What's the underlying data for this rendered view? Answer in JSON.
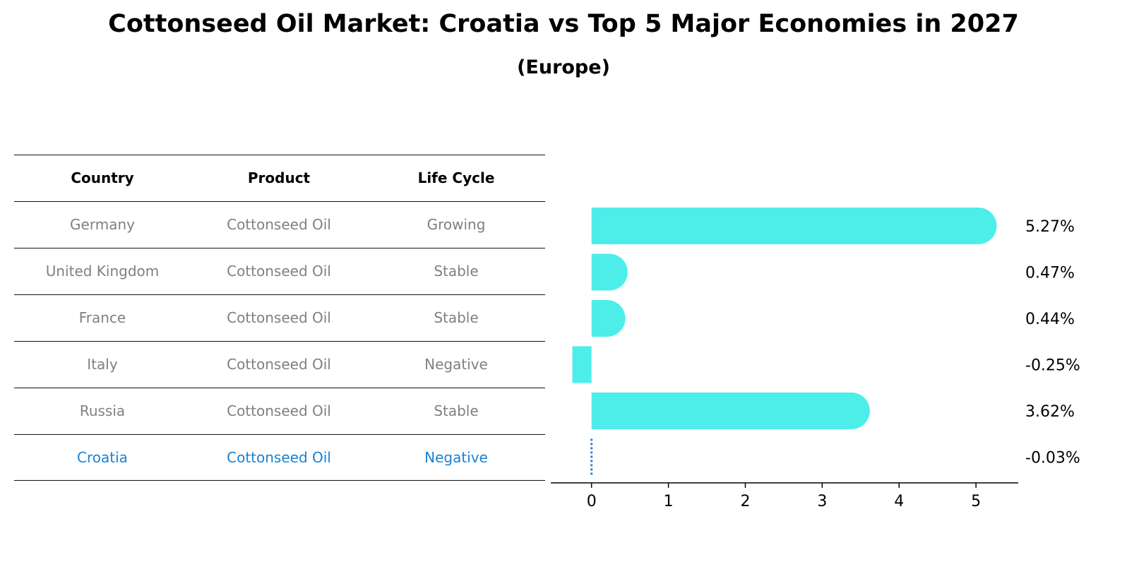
{
  "title": "Cottonseed Oil Market: Croatia vs Top 5 Major Economies in 2027",
  "subtitle": "(Europe)",
  "table": {
    "headers": [
      "Country",
      "Product",
      "Life Cycle"
    ],
    "rows": [
      [
        "Germany",
        "Cottonseed Oil",
        "Growing"
      ],
      [
        "United Kingdom",
        "Cottonseed Oil",
        "Stable"
      ],
      [
        "France",
        "Cottonseed Oil",
        "Stable"
      ],
      [
        "Italy",
        "Cottonseed Oil",
        "Negative"
      ],
      [
        "Russia",
        "Cottonseed Oil",
        "Stable"
      ],
      [
        "Croatia",
        "Cottonseed Oil",
        "Negative"
      ]
    ],
    "highlight_row": 5,
    "colors": {
      "text": "#808080",
      "highlight": "#1a82d4",
      "header": "#000000"
    }
  },
  "chart_data": {
    "type": "bar",
    "orientation": "horizontal",
    "categories": [
      "Germany",
      "United Kingdom",
      "France",
      "Italy",
      "Russia",
      "Croatia"
    ],
    "values": [
      5.27,
      0.47,
      0.44,
      -0.25,
      3.62,
      -0.03
    ],
    "value_labels": [
      "5.27%",
      "0.47%",
      "0.44%",
      "-0.25%",
      "3.62%",
      "-0.03%"
    ],
    "xticks": [
      0,
      1,
      2,
      3,
      4,
      5
    ],
    "xlim": [
      -0.53,
      5.55
    ],
    "bar_color": "#4deeea",
    "highlight_color": "#2f7ed8",
    "highlight_index": 5,
    "grid": false
  }
}
